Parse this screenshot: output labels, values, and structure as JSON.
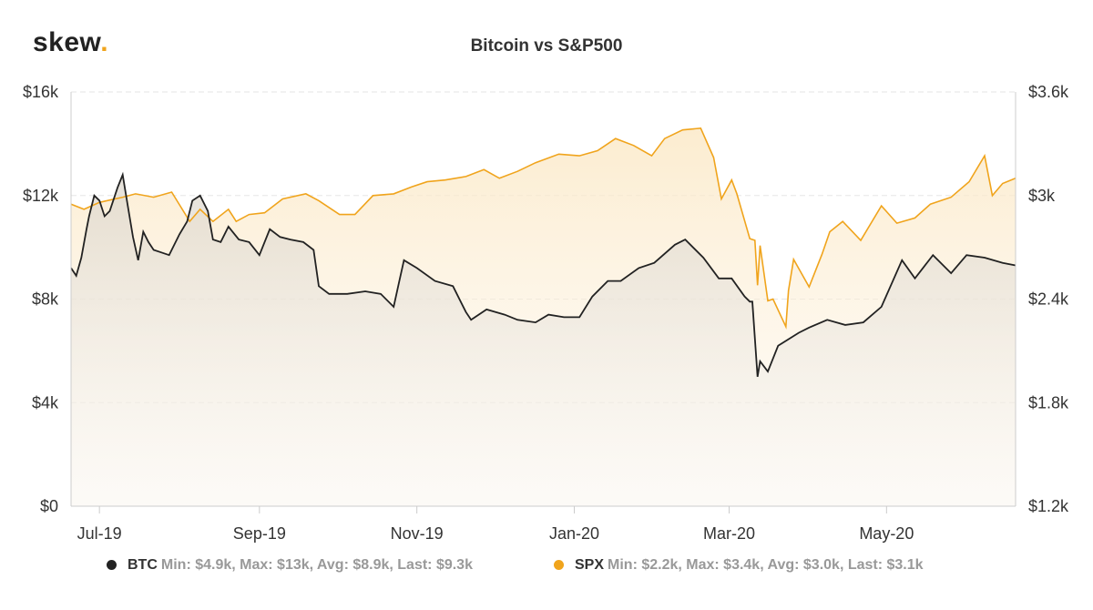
{
  "logo": {
    "text": "skew",
    "dot": "."
  },
  "chart_data": {
    "type": "line",
    "title": "Bitcoin vs S&P500",
    "x_ticks": [
      "Jul-19",
      "Sep-19",
      "Nov-19",
      "Jan-20",
      "Mar-20",
      "May-20"
    ],
    "x_range": [
      "2019-06-20",
      "2020-06-20"
    ],
    "y_left": {
      "range": [
        0,
        16000
      ],
      "ticks": [
        "$0",
        "$4k",
        "$8k",
        "$12k",
        "$16k"
      ]
    },
    "y_right": {
      "range": [
        1200,
        3600
      ],
      "ticks": [
        "$1.2k",
        "$1.8k",
        "$2.4k",
        "$3k",
        "$3.6k"
      ]
    },
    "grid": true,
    "legend_position": "bottom",
    "series": [
      {
        "name": "BTC",
        "axis": "left",
        "color": "#222222",
        "stats": "Min: $4.9k, Max: $13k, Avg: $8.9k, Last: $9.3k",
        "dates": [
          "2019-06-20",
          "2019-06-22",
          "2019-06-24",
          "2019-06-26",
          "2019-06-27",
          "2019-06-29",
          "2019-07-01",
          "2019-07-03",
          "2019-07-05",
          "2019-07-08",
          "2019-07-10",
          "2019-07-12",
          "2019-07-14",
          "2019-07-16",
          "2019-07-18",
          "2019-07-20",
          "2019-07-22",
          "2019-07-25",
          "2019-07-28",
          "2019-08-01",
          "2019-08-04",
          "2019-08-06",
          "2019-08-09",
          "2019-08-12",
          "2019-08-14",
          "2019-08-17",
          "2019-08-20",
          "2019-08-24",
          "2019-08-28",
          "2019-09-01",
          "2019-09-05",
          "2019-09-09",
          "2019-09-13",
          "2019-09-18",
          "2019-09-22",
          "2019-09-24",
          "2019-09-28",
          "2019-10-05",
          "2019-10-12",
          "2019-10-18",
          "2019-10-23",
          "2019-10-25",
          "2019-10-27",
          "2019-11-01",
          "2019-11-08",
          "2019-11-15",
          "2019-11-20",
          "2019-11-22",
          "2019-11-28",
          "2019-12-05",
          "2019-12-10",
          "2019-12-17",
          "2019-12-22",
          "2019-12-28",
          "2020-01-03",
          "2020-01-08",
          "2020-01-14",
          "2020-01-19",
          "2020-01-26",
          "2020-02-01",
          "2020-02-09",
          "2020-02-13",
          "2020-02-20",
          "2020-02-26",
          "2020-03-02",
          "2020-03-07",
          "2020-03-09",
          "2020-03-10",
          "2020-03-12",
          "2020-03-13",
          "2020-03-16",
          "2020-03-20",
          "2020-03-28",
          "2020-04-01",
          "2020-04-08",
          "2020-04-15",
          "2020-04-22",
          "2020-04-29",
          "2020-05-07",
          "2020-05-12",
          "2020-05-19",
          "2020-05-26",
          "2020-06-01",
          "2020-06-08",
          "2020-06-15",
          "2020-06-20"
        ],
        "values": [
          9200,
          8900,
          9600,
          10700,
          11200,
          12000,
          11800,
          11200,
          11400,
          12300,
          12800,
          11600,
          10400,
          9500,
          10600,
          10200,
          9900,
          9800,
          9700,
          10500,
          11000,
          11800,
          12000,
          11400,
          10300,
          10200,
          10800,
          10300,
          10200,
          9700,
          10700,
          10400,
          10300,
          10200,
          9900,
          8500,
          8200,
          8200,
          8300,
          8200,
          7700,
          8600,
          9500,
          9200,
          8700,
          8500,
          7500,
          7200,
          7600,
          7400,
          7200,
          7100,
          7400,
          7300,
          7300,
          8100,
          8700,
          8700,
          9200,
          9400,
          10100,
          10300,
          9600,
          8800,
          8800,
          8100,
          7900,
          7900,
          5000,
          5600,
          5200,
          6200,
          6700,
          6900,
          7200,
          7000,
          7100,
          7700,
          9500,
          8800,
          9700,
          9000,
          9700,
          9600,
          9400,
          9300
        ]
      },
      {
        "name": "SPX",
        "axis": "right",
        "color": "#f0a41c",
        "stats": "Min: $2.2k, Max: $3.4k, Avg: $3.0k, Last: $3.1k",
        "dates": [
          "2019-06-20",
          "2019-06-25",
          "2019-07-01",
          "2019-07-10",
          "2019-07-15",
          "2019-07-22",
          "2019-07-29",
          "2019-08-05",
          "2019-08-09",
          "2019-08-14",
          "2019-08-20",
          "2019-08-23",
          "2019-08-28",
          "2019-09-03",
          "2019-09-10",
          "2019-09-19",
          "2019-09-24",
          "2019-10-02",
          "2019-10-08",
          "2019-10-15",
          "2019-10-23",
          "2019-10-30",
          "2019-11-05",
          "2019-11-12",
          "2019-11-20",
          "2019-11-27",
          "2019-12-03",
          "2019-12-10",
          "2019-12-17",
          "2019-12-26",
          "2020-01-03",
          "2020-01-10",
          "2020-01-17",
          "2020-01-24",
          "2020-01-31",
          "2020-02-05",
          "2020-02-12",
          "2020-02-19",
          "2020-02-24",
          "2020-02-27",
          "2020-03-02",
          "2020-03-04",
          "2020-03-09",
          "2020-03-11",
          "2020-03-12",
          "2020-03-13",
          "2020-03-16",
          "2020-03-18",
          "2020-03-23",
          "2020-03-24",
          "2020-03-26",
          "2020-04-01",
          "2020-04-06",
          "2020-04-09",
          "2020-04-14",
          "2020-04-21",
          "2020-04-29",
          "2020-05-05",
          "2020-05-12",
          "2020-05-18",
          "2020-05-26",
          "2020-06-02",
          "2020-06-08",
          "2020-06-11",
          "2020-06-15",
          "2020-06-20"
        ],
        "values": [
          2950,
          2920,
          2960,
          2990,
          3010,
          2990,
          3020,
          2850,
          2920,
          2850,
          2920,
          2850,
          2890,
          2900,
          2980,
          3010,
          2970,
          2890,
          2890,
          3000,
          3010,
          3050,
          3080,
          3090,
          3110,
          3150,
          3100,
          3140,
          3190,
          3240,
          3230,
          3260,
          3330,
          3290,
          3230,
          3330,
          3380,
          3390,
          3220,
          2980,
          3090,
          3010,
          2750,
          2740,
          2480,
          2710,
          2390,
          2400,
          2240,
          2450,
          2630,
          2470,
          2660,
          2790,
          2850,
          2740,
          2940,
          2840,
          2870,
          2950,
          2990,
          3080,
          3230,
          3000,
          3070,
          3100
        ]
      }
    ]
  }
}
